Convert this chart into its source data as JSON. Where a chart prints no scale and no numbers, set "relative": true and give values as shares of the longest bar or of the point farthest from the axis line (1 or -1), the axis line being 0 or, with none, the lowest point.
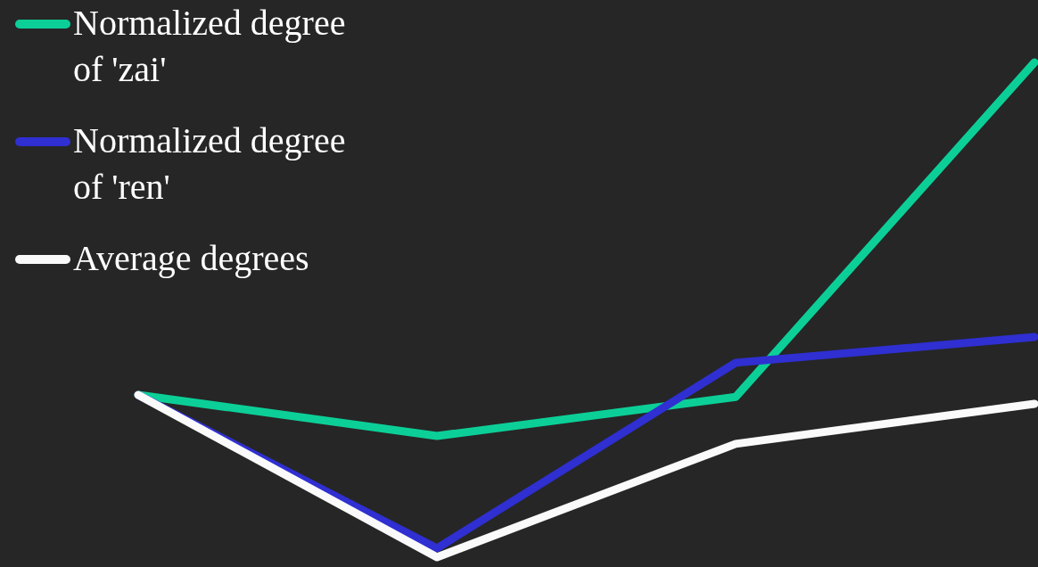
{
  "chart_data": {
    "type": "line",
    "relative": true,
    "categories": [
      null,
      null,
      null,
      null
    ],
    "legend": "top left",
    "series": [
      {
        "name": "Normalized degree of 'zai'",
        "color": "#0ccf98",
        "values": [
          0.328,
          0.245,
          0.324,
          1
        ]
      },
      {
        "name": "Normalized degree of 'ren'",
        "color": "#2f2fd2",
        "values": [
          0.328,
          0.018,
          0.393,
          0.445
        ]
      },
      {
        "name": "Average degrees",
        "color": "#fafafa",
        "values": [
          0.328,
          0,
          0.229,
          0.31
        ]
      }
    ]
  }
}
